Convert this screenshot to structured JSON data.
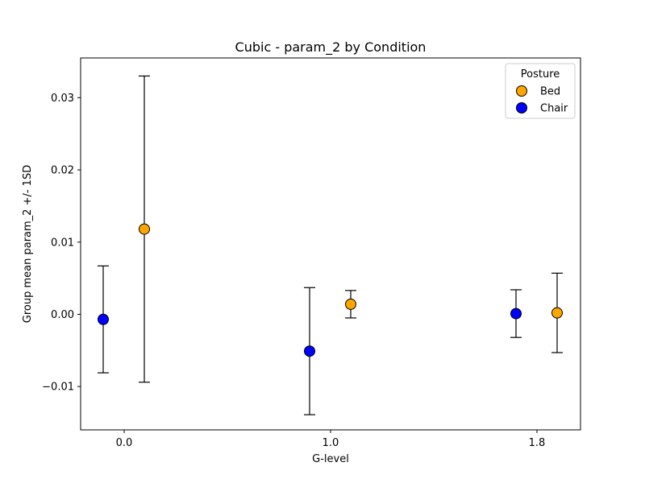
{
  "chart_data": {
    "type": "scatter",
    "title": "Cubic - param_2 by Condition",
    "xlabel": "G-level",
    "ylabel": "Group mean param_2 +/- 1SD",
    "x_tick_labels": [
      "0.0",
      "1.0",
      "1.8"
    ],
    "y_ticks": [
      -0.01,
      0.0,
      0.01,
      0.02,
      0.03
    ],
    "y_tick_labels": [
      "−0.01",
      "0.00",
      "0.01",
      "0.02",
      "0.03"
    ],
    "ylim": [
      -0.016,
      0.0355
    ],
    "grid": false,
    "legend": {
      "title": "Posture",
      "placement": "top-right",
      "entries": [
        "Bed",
        "Chair"
      ]
    },
    "series": [
      {
        "name": "Chair",
        "color": "#0000ff",
        "points": [
          {
            "x": "0.0",
            "y": -0.0007,
            "sd": 0.0074
          },
          {
            "x": "1.0",
            "y": -0.0051,
            "sd": 0.0088
          },
          {
            "x": "1.8",
            "y": 0.0001,
            "sd": 0.0033
          }
        ]
      },
      {
        "name": "Bed",
        "color": "#ffa500",
        "points": [
          {
            "x": "0.0",
            "y": 0.0118,
            "sd": 0.0212
          },
          {
            "x": "1.0",
            "y": 0.0014,
            "sd": 0.0019
          },
          {
            "x": "1.8",
            "y": 0.0002,
            "sd": 0.0055
          }
        ]
      }
    ]
  }
}
